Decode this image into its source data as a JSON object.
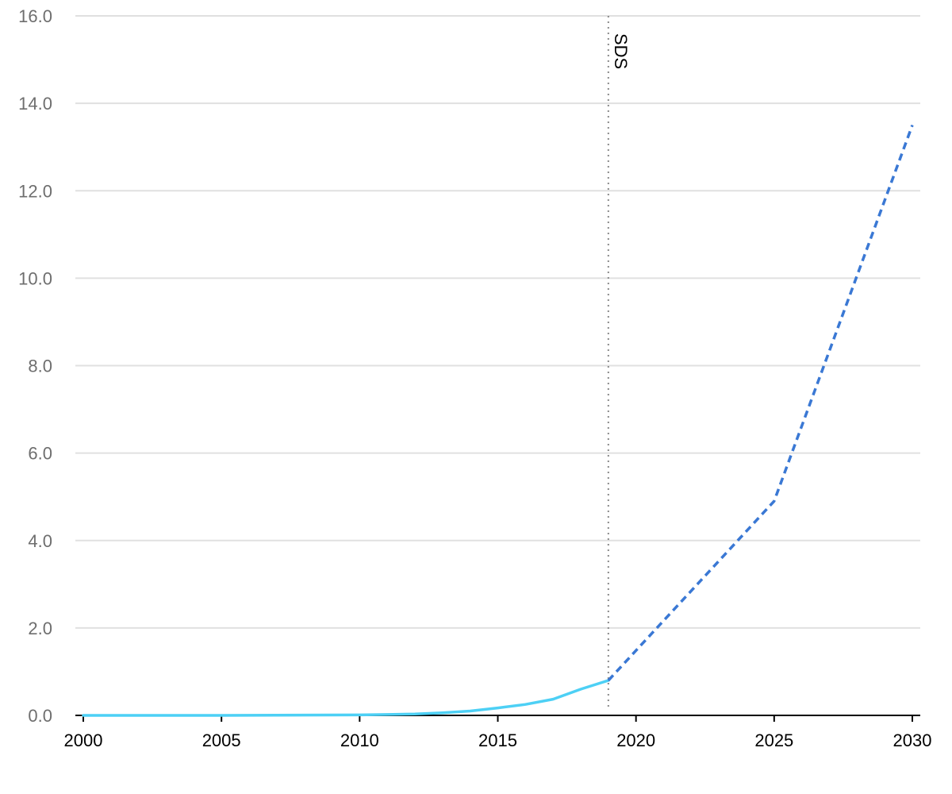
{
  "chart_data": {
    "type": "line",
    "xlim": [
      2000,
      2030
    ],
    "ylim": [
      0,
      16
    ],
    "yticks": [
      "0.0",
      "2.0",
      "4.0",
      "6.0",
      "8.0",
      "10.0",
      "12.0",
      "14.0",
      "16.0"
    ],
    "xticks": [
      "2000",
      "2005",
      "2010",
      "2015",
      "2020",
      "2025",
      "2030"
    ],
    "grid": true,
    "series": [
      {
        "style": "solid",
        "color": "#4dd0f5",
        "x": [
          2000,
          2005,
          2010,
          2011,
          2012,
          2013,
          2014,
          2015,
          2016,
          2017,
          2018,
          2019
        ],
        "y": [
          0.0,
          0.0,
          0.01,
          0.02,
          0.03,
          0.06,
          0.1,
          0.17,
          0.25,
          0.37,
          0.6,
          0.8
        ]
      },
      {
        "style": "dashed",
        "color": "#3a78d4",
        "x": [
          2019,
          2025,
          2030
        ],
        "y": [
          0.8,
          4.9,
          13.5
        ]
      }
    ],
    "annotations": [
      {
        "x": 2019,
        "text": "SDS",
        "style": "dotted-vertical-line"
      }
    ]
  }
}
